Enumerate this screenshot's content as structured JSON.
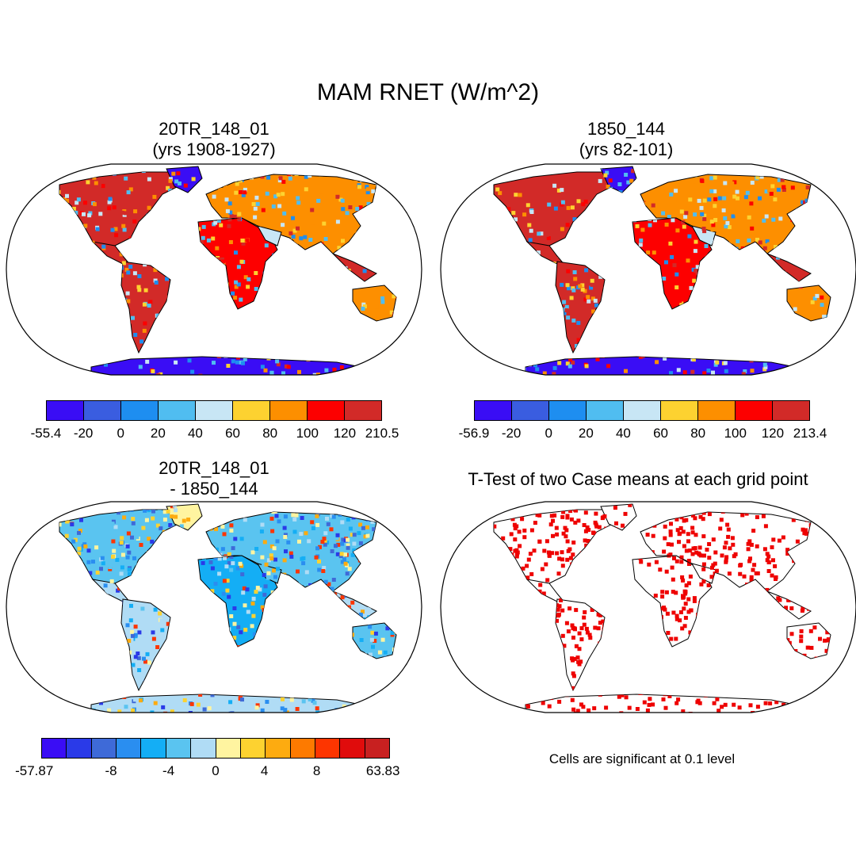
{
  "title": "MAM RNET (W/m^2)",
  "colors": {
    "palette1": [
      "#3a0df5",
      "#3a5de0",
      "#1e8ef0",
      "#50bdf0",
      "#c8e6f5",
      "#fdd230",
      "#fd8f00",
      "#fd0000",
      "#d22a28"
    ],
    "palette3": [
      "#3a0df5",
      "#2a3ae8",
      "#3e6ad8",
      "#2a8ef0",
      "#14aef5",
      "#5ac4f0",
      "#b0dcf5",
      "#fff4a0",
      "#fdd230",
      "#fdab10",
      "#fd7a00",
      "#fd3500",
      "#e00c0c",
      "#c82020"
    ],
    "significance": "#ee0000",
    "ocean": "#ffffff",
    "antarctica_blue": "#3a0df5"
  },
  "panels": [
    {
      "id": "p1",
      "title_line1": "20TR_148_01",
      "title_line2": "(yrs 1908-1927)",
      "colorbar_ticks": [
        "-55.4",
        "-20",
        "0",
        "20",
        "40",
        "60",
        "80",
        "100",
        "120",
        "210.5"
      ]
    },
    {
      "id": "p2",
      "title_line1": "1850_144",
      "title_line2": "(yrs 82-101)",
      "colorbar_ticks": [
        "-56.9",
        "-20",
        "0",
        "20",
        "40",
        "60",
        "80",
        "100",
        "120",
        "213.4"
      ]
    },
    {
      "id": "p3",
      "title_line1": "20TR_148_01",
      "title_line2": "- 1850_144",
      "colorbar_ticks": [
        "-57.87",
        "-8",
        "-4",
        "0",
        "4",
        "8",
        "63.83"
      ]
    },
    {
      "id": "p4",
      "title_line1": "T-Test of two Case means at each grid point",
      "note": "Cells are significant at 0.1 level"
    }
  ]
}
